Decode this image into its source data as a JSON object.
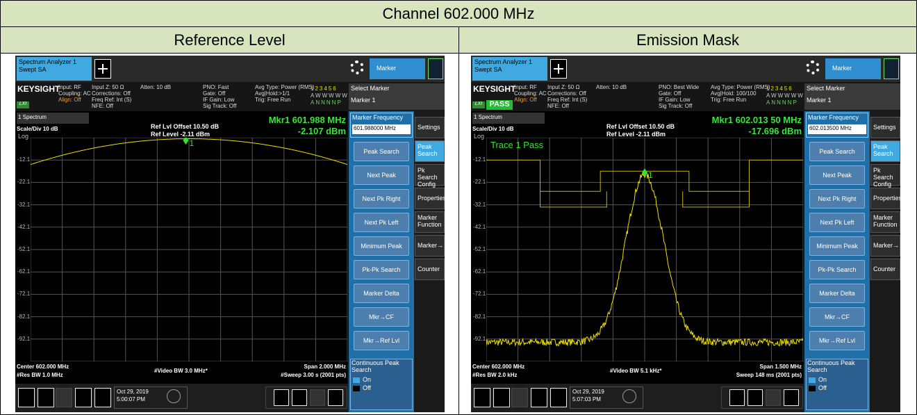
{
  "table": {
    "title": "Channel 602.000 MHz",
    "headers": [
      "Reference Level",
      "Emission Mask"
    ],
    "panels": [
      {
        "tab": [
          "Spectrum Analyzer 1",
          "Swept SA"
        ],
        "menu": "Marker",
        "logo": "KEYSIGHT",
        "lxi": "LXI",
        "col1": [
          "Input: RF",
          "Coupling: AC",
          "Align: Off"
        ],
        "col2": [
          "Input Z: 50 Ω",
          "Corrections: Off",
          "Freq Ref: Int (S)",
          "NFE: Off"
        ],
        "col3": [
          "Atten: 10 dB"
        ],
        "col4": [
          "PNO: Fast",
          "Gate: Off",
          "IF Gain: Low",
          "Sig Track: Off"
        ],
        "col5": [
          "Avg Type: Power (RMS)",
          "Avg|Hold:>1/1",
          "Trig: Free Run"
        ],
        "traces": [
          "123456",
          "AWWWWW",
          "ANNNNP"
        ],
        "select": [
          "Select Marker",
          "Marker 1"
        ],
        "spectrum": "1 Spectrum",
        "scale": [
          "Scale/Div 10 dB",
          "Log"
        ],
        "ref": [
          "Ref Lvl Offset 10.50 dB",
          "Ref Level -2.11 dBm"
        ],
        "marker": [
          "Mkr1  601.988 MHz",
          "-2.107 dBm"
        ],
        "marker_id": "1",
        "ylabels": [
          "-12.1",
          "-22.1",
          "-32.1",
          "-42.1",
          "-52.1",
          "-62.1",
          "-72.1",
          "-82.1",
          "-92.1"
        ],
        "bottom": [
          "Center 602.000 MHz",
          "#Res BW 1.0 MHz",
          "#Video BW 3.0 MHz*",
          "Span 2.000 MHz",
          "#Sweep 3.00 s (2001 pts)"
        ],
        "freq": [
          "Marker Frequency",
          "601.988000 MHz"
        ],
        "softkeys": [
          "Peak Search",
          "Next Peak",
          "Next Pk Right",
          "Next Pk Left",
          "Minimum Peak",
          "Pk-Pk Search",
          "Marker Delta",
          "Mkr→CF",
          "Mkr→Ref Lvl"
        ],
        "continuous": [
          "Continuous Peak Search",
          "On",
          "Off"
        ],
        "tabs": [
          "Settings",
          "Peak Search",
          "Pk Search Config",
          "Properties",
          "Marker Function",
          "Marker→",
          "Counter"
        ],
        "date": [
          "Oct 29, 2019",
          "5:00:07 PM"
        ]
      },
      {
        "tab": [
          "Spectrum Analyzer 1",
          "Swept SA"
        ],
        "menu": "Marker",
        "logo": "KEYSIGHT",
        "lxi": "LXI",
        "pass": "PASS",
        "col1": [
          "Input: RF",
          "Coupling: AC",
          "Align: Off"
        ],
        "col2": [
          "Input Z: 50 Ω",
          "Corrections: Off",
          "Freq Ref: Int (S)",
          "NFE: Off"
        ],
        "col3": [
          "Atten: 10 dB"
        ],
        "col4": [
          "PNO: Best Wide",
          "Gate: Off",
          "IF Gain: Low",
          "Sig Track: Off"
        ],
        "col5": [
          "Avg Type: Power (RMS)",
          "Avg|Hold: 100/100",
          "Trig: Free Run"
        ],
        "traces": [
          "123456",
          "AWWWWW",
          "ANNNNP"
        ],
        "select": [
          "Select Marker",
          "Marker 1"
        ],
        "spectrum": "1 Spectrum",
        "scale": [
          "Scale/Div 10 dB",
          "Log"
        ],
        "ref": [
          "Ref Lvl Offset 10.50 dB",
          "Ref Level -2.11 dBm"
        ],
        "marker": [
          "Mkr1  602.013 50 MHz",
          "-17.696 dBm"
        ],
        "marker_id": "1",
        "trace_pass": "Trace 1 Pass",
        "ylabels": [
          "-12.1",
          "-22.1",
          "-32.1",
          "-42.1",
          "-52.1",
          "-62.1",
          "-72.1",
          "-82.1",
          "-92.1"
        ],
        "bottom": [
          "Center 602.000 MHz",
          "#Res BW 2.0 kHz",
          "#Video BW 5.1 kHz*",
          "Span 1.500 MHz",
          "Sweep 148 ms (2001 pts)"
        ],
        "freq": [
          "Marker Frequency",
          "602.013500 MHz"
        ],
        "softkeys": [
          "Peak Search",
          "Next Peak",
          "Next Pk Right",
          "Next Pk Left",
          "Minimum Peak",
          "Pk-Pk Search",
          "Marker Delta",
          "Mkr→CF",
          "Mkr→Ref Lvl"
        ],
        "continuous": [
          "Continuous Peak Search",
          "On",
          "Off"
        ],
        "tabs": [
          "Settings",
          "Peak Search",
          "Pk Search Config",
          "Properties",
          "Marker Function",
          "Marker→",
          "Counter"
        ],
        "date": [
          "Oct 29, 2019",
          "5:07:03 PM"
        ]
      }
    ]
  }
}
